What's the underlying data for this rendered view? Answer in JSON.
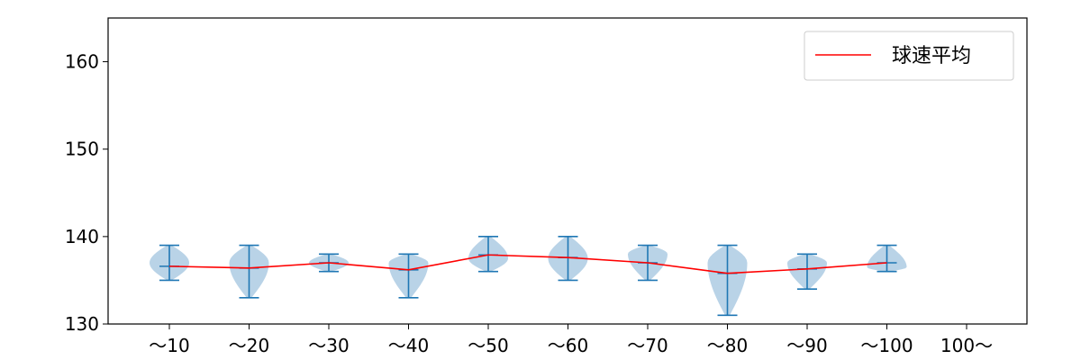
{
  "chart_data": {
    "type": "violin",
    "title": "",
    "xlabel": "",
    "ylabel": "",
    "categories": [
      "～10",
      "～20",
      "～30",
      "～40",
      "～50",
      "～60",
      "～70",
      "～80",
      "～90",
      "～100",
      "100～"
    ],
    "ylim": [
      130,
      165
    ],
    "yticks": [
      130,
      140,
      150,
      160
    ],
    "grid": false,
    "legend": {
      "position": "top-right",
      "entries": [
        "球速平均"
      ]
    },
    "colors": {
      "violin": "#b9d3e7",
      "whisker": "#1f77b4",
      "mean_line": "#ff0000"
    },
    "violins": [
      {
        "category": "～10",
        "min": 135,
        "max": 139,
        "mean": 136.6,
        "peak": 137
      },
      {
        "category": "～20",
        "min": 133,
        "max": 139,
        "mean": 136.4,
        "peak": 137
      },
      {
        "category": "～30",
        "min": 136,
        "max": 138,
        "mean": 137.0,
        "peak": 137
      },
      {
        "category": "～40",
        "min": 133,
        "max": 138,
        "mean": 136.2,
        "peak": 137
      },
      {
        "category": "～50",
        "min": 136,
        "max": 140,
        "mean": 137.9,
        "peak": 137.5
      },
      {
        "category": "～60",
        "min": 135,
        "max": 140,
        "mean": 137.6,
        "peak": 137.5
      },
      {
        "category": "～70",
        "min": 135,
        "max": 139,
        "mean": 137.0,
        "peak": 138
      },
      {
        "category": "～80",
        "min": 131,
        "max": 139,
        "mean": 135.8,
        "peak": 137
      },
      {
        "category": "～90",
        "min": 134,
        "max": 138,
        "mean": 136.3,
        "peak": 137
      },
      {
        "category": "～100",
        "min": 136,
        "max": 139,
        "mean": 137.0,
        "peak": 136.5
      }
    ],
    "series": [
      {
        "name": "球速平均",
        "values": [
          136.6,
          136.4,
          137.0,
          136.2,
          137.9,
          137.6,
          137.0,
          135.8,
          136.3,
          137.0,
          null
        ]
      }
    ]
  }
}
